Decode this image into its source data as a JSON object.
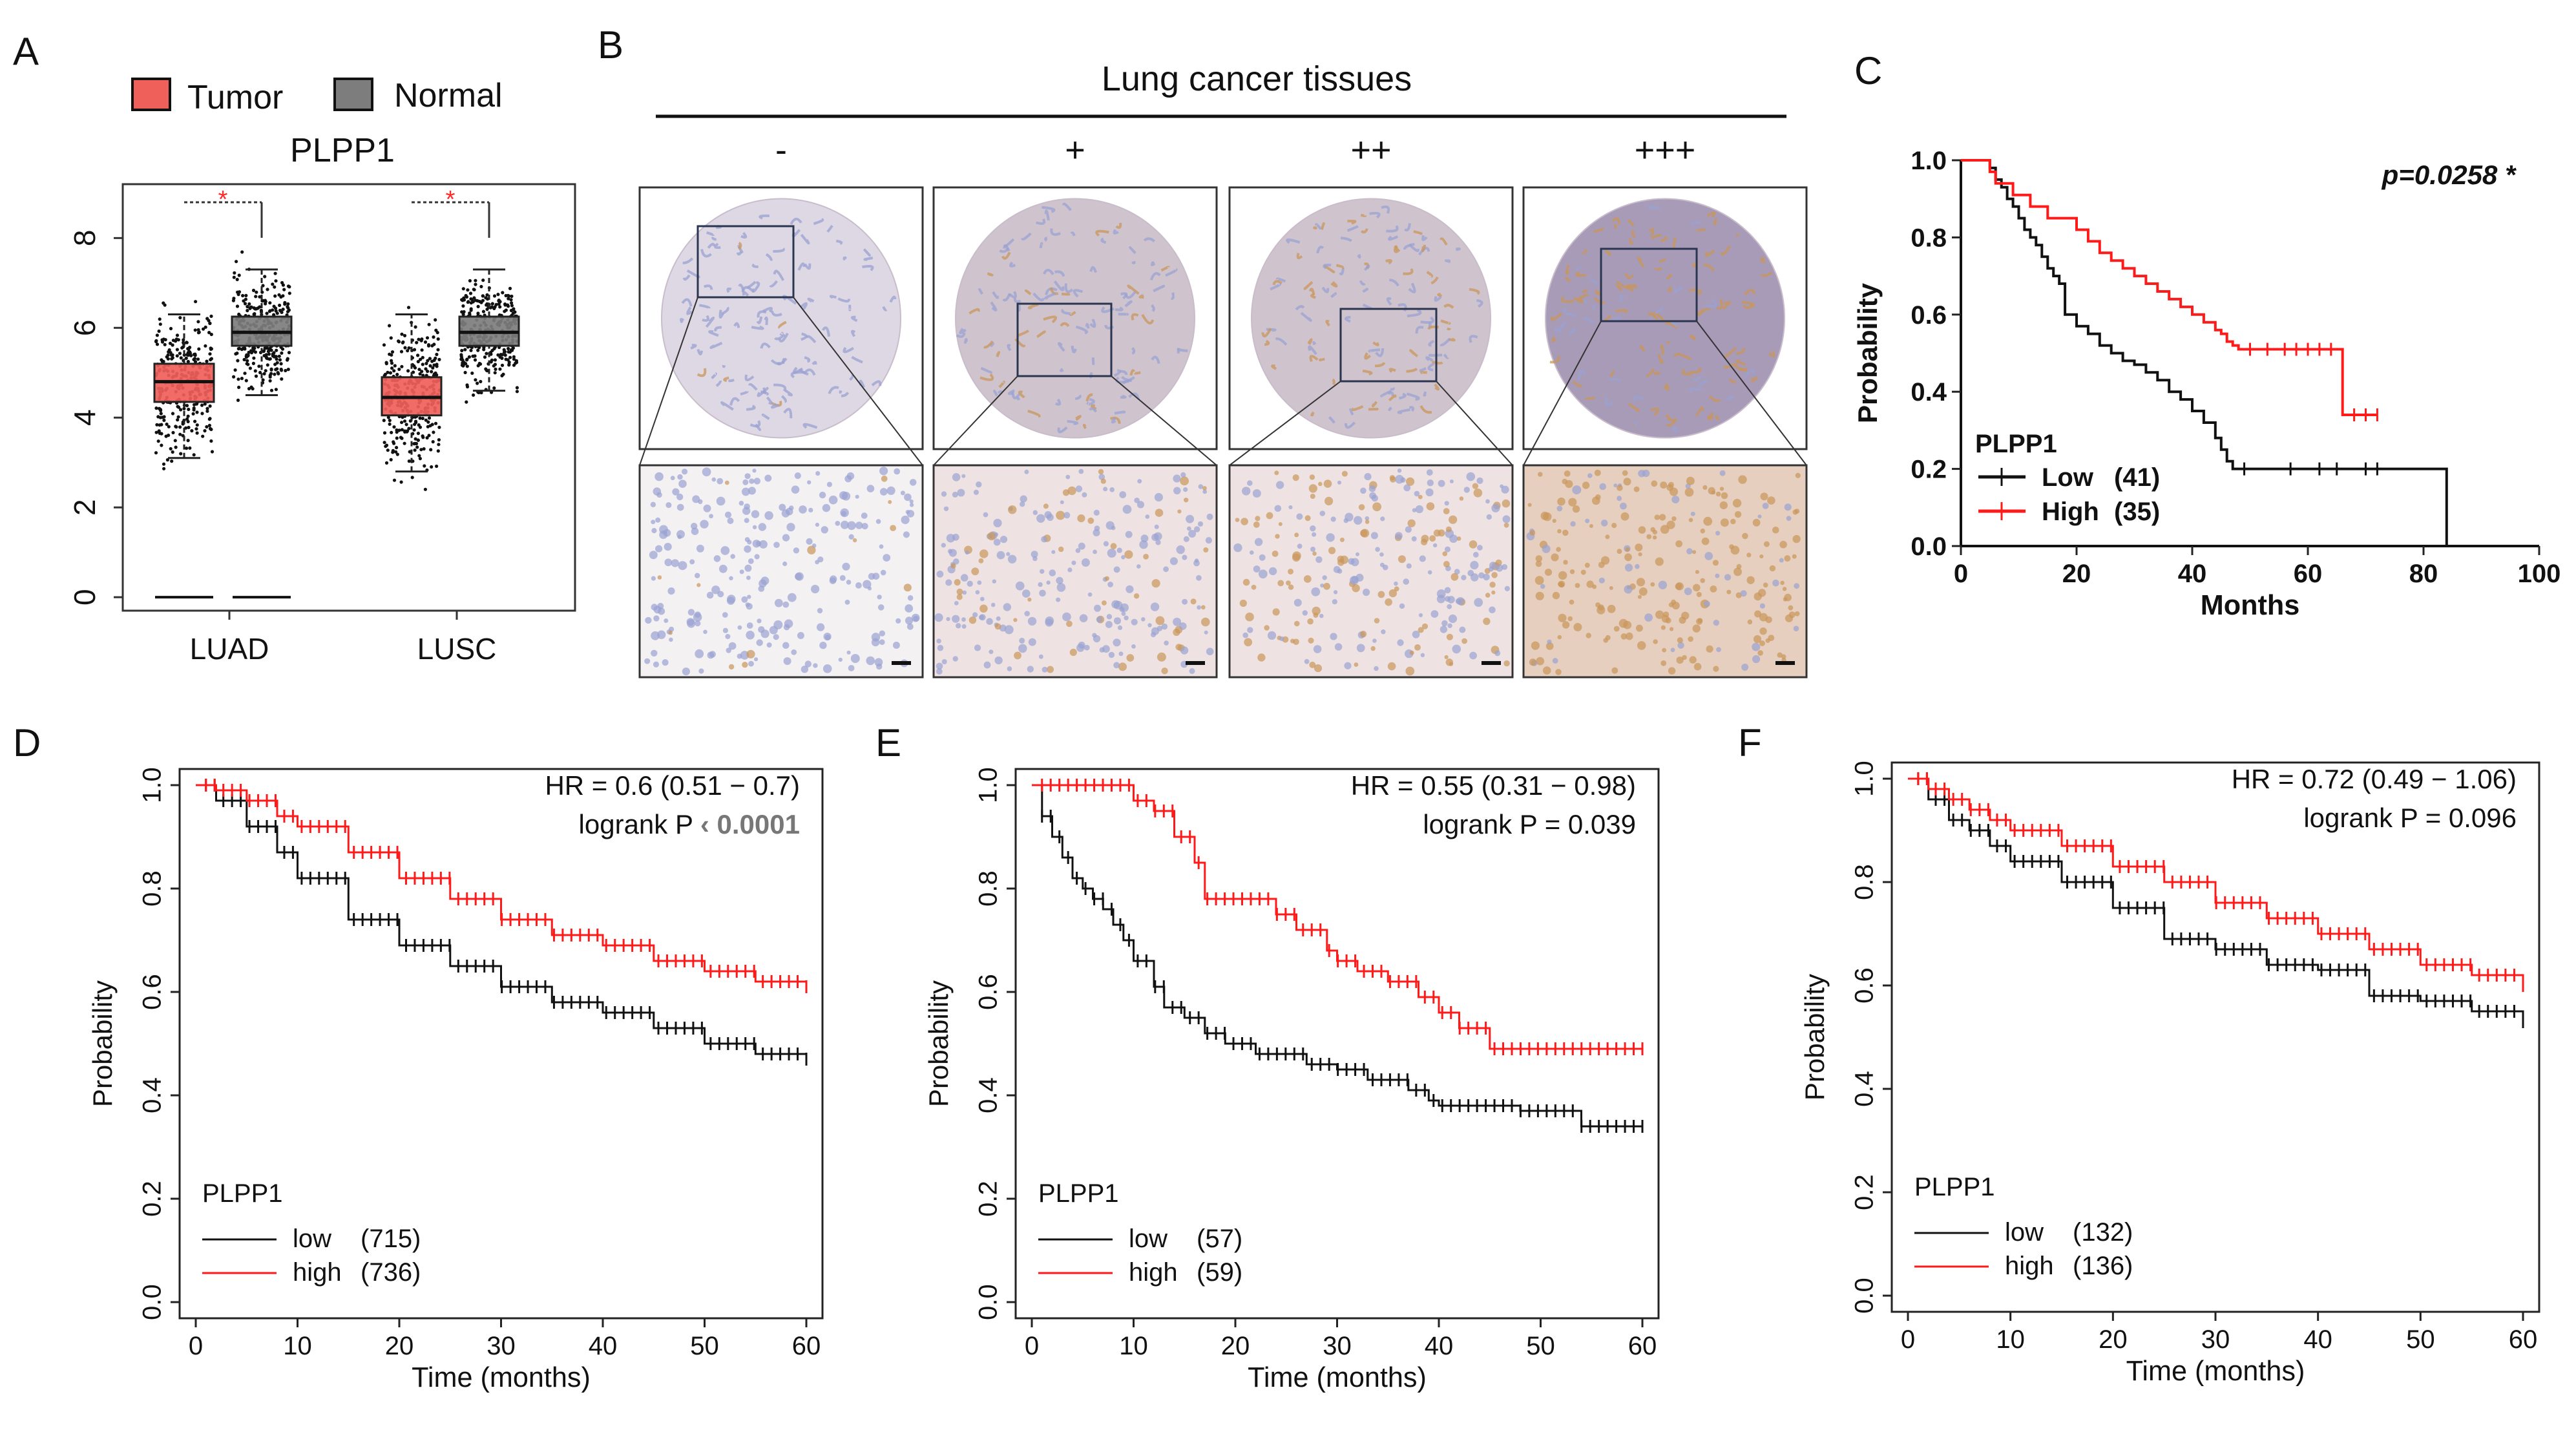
{
  "colors": {
    "tumor": "#f0605a",
    "normal": "#7d7d7d",
    "low": "#111111",
    "high": "#ff1a1a",
    "star": "#ff2a2a",
    "stainBlue": "#9aa2d2",
    "stainBrown": "#c9965a"
  },
  "chart_data": [
    {
      "panel": "A",
      "type": "box",
      "title": "PLPP1",
      "legend": [
        {
          "name": "Tumor"
        },
        {
          "name": "Normal"
        }
      ],
      "categories": [
        "LUAD",
        "LUSC"
      ],
      "ylim": [
        -0.3,
        9.2
      ],
      "yticks": [
        "0",
        "2",
        "4",
        "6",
        "8"
      ],
      "significance": [
        "*",
        "*"
      ],
      "boxes": [
        {
          "group": "LUAD",
          "name": "Tumor",
          "q1": 4.35,
          "median": 4.8,
          "q3": 5.2,
          "whisker_low": 3.1,
          "whisker_high": 6.3
        },
        {
          "group": "LUAD",
          "name": "Normal",
          "q1": 5.6,
          "median": 5.9,
          "q3": 6.25,
          "whisker_low": 4.5,
          "whisker_high": 7.3
        },
        {
          "group": "LUSC",
          "name": "Tumor",
          "q1": 4.05,
          "median": 4.45,
          "q3": 4.9,
          "whisker_low": 2.8,
          "whisker_high": 6.3
        },
        {
          "group": "LUSC",
          "name": "Normal",
          "q1": 5.6,
          "median": 5.9,
          "q3": 6.25,
          "whisker_low": 4.6,
          "whisker_high": 7.3
        }
      ]
    },
    {
      "panel": "C",
      "type": "line",
      "xlabel": "Months",
      "ylabel": "Probability",
      "xlim": [
        0,
        100
      ],
      "ylim": [
        0,
        1
      ],
      "xticks": [
        "0",
        "20",
        "40",
        "60",
        "80",
        "100"
      ],
      "yticks": [
        "0.0",
        "0.2",
        "0.4",
        "0.6",
        "0.8",
        "1.0"
      ],
      "annotation": "p=0.0258 *",
      "legend_title": "PLPP1",
      "series": [
        {
          "name": "Low",
          "count": "(41)",
          "x": [
            0,
            5,
            6,
            7,
            8,
            9,
            10,
            11,
            12,
            13,
            14,
            15,
            16,
            17,
            18,
            20,
            22,
            24,
            26,
            28,
            30,
            32,
            34,
            36,
            38,
            40,
            42,
            44,
            45,
            46,
            47,
            48,
            84
          ],
          "y": [
            1.0,
            0.98,
            0.95,
            0.93,
            0.9,
            0.88,
            0.85,
            0.82,
            0.8,
            0.78,
            0.75,
            0.72,
            0.7,
            0.68,
            0.6,
            0.57,
            0.55,
            0.52,
            0.5,
            0.48,
            0.47,
            0.45,
            0.43,
            0.4,
            0.38,
            0.35,
            0.32,
            0.28,
            0.25,
            0.22,
            0.2,
            0.2,
            0.0
          ],
          "censor_x": [
            49,
            57,
            62,
            65,
            70,
            72
          ]
        },
        {
          "name": "High",
          "count": "(35)",
          "x": [
            0,
            5,
            6,
            9,
            12,
            15,
            20,
            22,
            24,
            26,
            28,
            30,
            32,
            34,
            36,
            38,
            40,
            42,
            44,
            45,
            46,
            47,
            48,
            50,
            60,
            65,
            66,
            72
          ],
          "y": [
            1.0,
            0.97,
            0.94,
            0.91,
            0.88,
            0.85,
            0.82,
            0.79,
            0.76,
            0.74,
            0.72,
            0.7,
            0.68,
            0.66,
            0.64,
            0.62,
            0.6,
            0.58,
            0.56,
            0.55,
            0.53,
            0.52,
            0.51,
            0.51,
            0.51,
            0.51,
            0.34,
            0.34
          ],
          "censor_x": [
            50,
            53,
            56,
            58,
            60,
            62,
            64,
            68,
            70,
            72
          ]
        }
      ]
    },
    {
      "panel": "D",
      "type": "line",
      "xlabel": "Time (months)",
      "ylabel": "Probability",
      "xlim": [
        0,
        60
      ],
      "ylim": [
        0,
        1
      ],
      "xticks": [
        "0",
        "10",
        "20",
        "30",
        "40",
        "50",
        "60"
      ],
      "yticks": [
        "0.0",
        "0.2",
        "0.4",
        "0.6",
        "0.8",
        "1.0"
      ],
      "hr": "HR = 0.6 (0.51 − 0.7)",
      "logrank": "logrank P",
      "logrank_value": "‹ 0.0001",
      "legend_title": "PLPP1",
      "series": [
        {
          "name": "low",
          "count": "(715)",
          "x": [
            0,
            2,
            5,
            8,
            10,
            15,
            20,
            25,
            30,
            35,
            40,
            45,
            50,
            55,
            60
          ],
          "y": [
            1.0,
            0.97,
            0.92,
            0.87,
            0.82,
            0.74,
            0.69,
            0.65,
            0.61,
            0.58,
            0.56,
            0.53,
            0.5,
            0.48,
            0.47
          ]
        },
        {
          "name": "high",
          "count": "(736)",
          "x": [
            0,
            2,
            5,
            8,
            10,
            15,
            20,
            25,
            30,
            35,
            40,
            45,
            50,
            55,
            60
          ],
          "y": [
            1.0,
            0.99,
            0.97,
            0.94,
            0.92,
            0.87,
            0.82,
            0.78,
            0.74,
            0.71,
            0.69,
            0.66,
            0.64,
            0.62,
            0.61
          ]
        }
      ]
    },
    {
      "panel": "E",
      "type": "line",
      "xlabel": "Time (months)",
      "ylabel": "Probability",
      "xlim": [
        0,
        60
      ],
      "ylim": [
        0,
        1
      ],
      "xticks": [
        "0",
        "10",
        "20",
        "30",
        "40",
        "50",
        "60"
      ],
      "yticks": [
        "0.0",
        "0.2",
        "0.4",
        "0.6",
        "0.8",
        "1.0"
      ],
      "hr": "HR = 0.55 (0.31 − 0.98)",
      "logrank": "logrank P",
      "logrank_value": "= 0.039",
      "legend_title": "PLPP1",
      "series": [
        {
          "name": "low",
          "count": "(57)",
          "x": [
            0,
            1,
            2,
            3,
            4,
            5,
            6,
            7,
            8,
            9,
            10,
            12,
            13,
            15,
            17,
            19,
            22,
            27,
            30,
            33,
            37,
            39,
            40,
            44,
            48,
            54,
            60
          ],
          "y": [
            1.0,
            0.94,
            0.9,
            0.86,
            0.82,
            0.8,
            0.78,
            0.76,
            0.73,
            0.7,
            0.66,
            0.61,
            0.57,
            0.55,
            0.52,
            0.5,
            0.48,
            0.46,
            0.45,
            0.43,
            0.41,
            0.39,
            0.38,
            0.38,
            0.37,
            0.34,
            0.34
          ]
        },
        {
          "name": "high",
          "count": "(59)",
          "x": [
            0,
            1,
            5,
            8,
            10,
            12,
            14,
            16,
            17,
            20,
            24,
            26,
            29,
            30,
            32,
            35,
            38,
            40,
            42,
            45,
            50,
            60
          ],
          "y": [
            1.0,
            1.0,
            1.0,
            1.0,
            0.97,
            0.95,
            0.9,
            0.85,
            0.78,
            0.78,
            0.75,
            0.72,
            0.68,
            0.66,
            0.64,
            0.62,
            0.59,
            0.56,
            0.53,
            0.49,
            0.49,
            0.49
          ]
        }
      ]
    },
    {
      "panel": "F",
      "type": "line",
      "xlabel": "Time (months)",
      "ylabel": "Probability",
      "xlim": [
        0,
        60
      ],
      "ylim": [
        0,
        1
      ],
      "xticks": [
        "0",
        "10",
        "20",
        "30",
        "40",
        "50",
        "60"
      ],
      "yticks": [
        "0.0",
        "0.2",
        "0.4",
        "0.6",
        "0.8",
        "1.0"
      ],
      "hr": "HR = 0.72 (0.49 − 1.06)",
      "logrank": "logrank P",
      "logrank_value": "= 0.096",
      "legend_title": "PLPP1",
      "series": [
        {
          "name": "low",
          "count": "(132)",
          "x": [
            0,
            2,
            4,
            6,
            8,
            10,
            15,
            20,
            25,
            30,
            35,
            40,
            45,
            50,
            55,
            60
          ],
          "y": [
            1.0,
            0.96,
            0.92,
            0.9,
            0.87,
            0.84,
            0.8,
            0.75,
            0.69,
            0.67,
            0.64,
            0.63,
            0.58,
            0.57,
            0.55,
            0.53
          ]
        },
        {
          "name": "high",
          "count": "(136)",
          "x": [
            0,
            2,
            4,
            6,
            8,
            10,
            15,
            20,
            25,
            30,
            35,
            40,
            45,
            50,
            55,
            60
          ],
          "y": [
            1.0,
            0.98,
            0.96,
            0.94,
            0.92,
            0.9,
            0.87,
            0.83,
            0.8,
            0.76,
            0.73,
            0.7,
            0.67,
            0.64,
            0.62,
            0.6
          ]
        }
      ]
    }
  ],
  "panelB": {
    "title": "Lung cancer tissues",
    "grades": [
      "-",
      "+",
      "++",
      "+++"
    ]
  },
  "panel_labels": [
    "A",
    "B",
    "C",
    "D",
    "E",
    "F"
  ]
}
